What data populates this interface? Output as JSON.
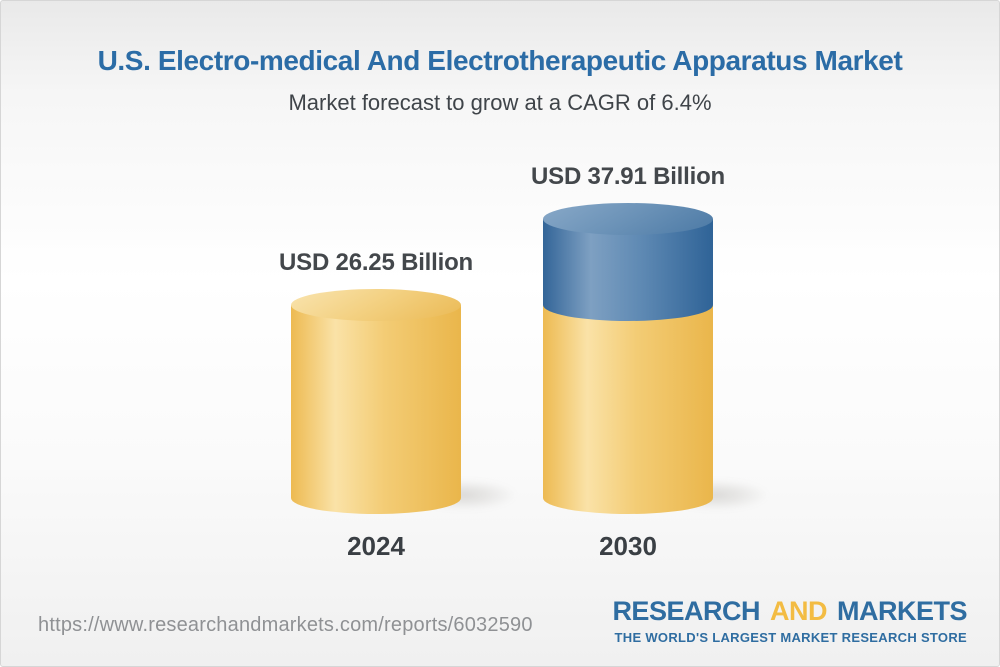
{
  "header": {
    "title": "U.S. Electro-medical And Electrotherapeutic Apparatus Market",
    "subtitle": "Market forecast to grow at a CAGR of 6.4%"
  },
  "chart_data": {
    "type": "bar",
    "variant": "3d-stacked-cylinder",
    "categories": [
      "2024",
      "2030"
    ],
    "values": [
      26.25,
      37.91
    ],
    "value_labels": [
      "USD 26.25 Billion",
      "USD 37.91 Billion"
    ],
    "base_value": 26.25,
    "growth_value": 11.66,
    "cagr_percent": 6.4,
    "unit": "USD Billion",
    "ylim": [
      0,
      40
    ],
    "grid": false,
    "legend": "none",
    "colors": {
      "base_segment": "#F2C566",
      "growth_segment": "#4C7BA8",
      "value_label_text": "#43474B",
      "title_text": "#2B6CA6"
    }
  },
  "footer": {
    "url": "https://www.researchandmarkets.com/reports/6032590",
    "logo": {
      "word_research": "RESEARCH",
      "word_and": "AND",
      "word_markets": "MARKETS",
      "tagline": "THE WORLD'S LARGEST MARKET RESEARCH STORE",
      "blue": "#2F6DA1",
      "gold": "#F3BC43"
    }
  }
}
